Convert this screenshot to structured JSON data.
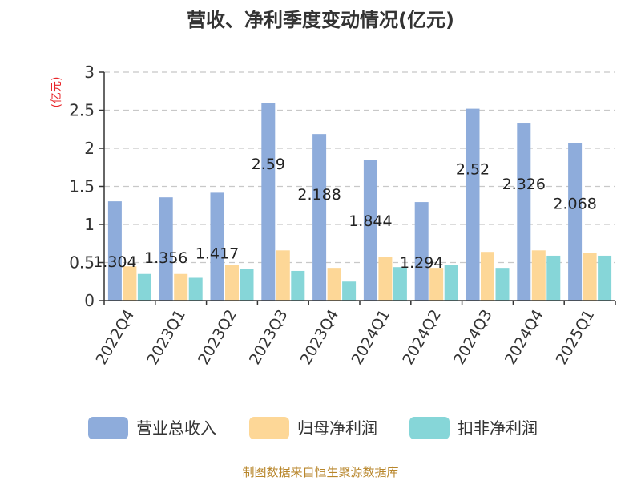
{
  "chart_data": {
    "type": "bar",
    "title": "营收、净利季度变动情况(亿元)",
    "ylabel": "(亿元)",
    "xlabel": "",
    "ylim": [
      0,
      3
    ],
    "yticks": [
      "0",
      "0.5",
      "1",
      "1.5",
      "2",
      "2.5",
      "3"
    ],
    "grid": true,
    "legend_position": "bottom",
    "categories": [
      "2022Q4",
      "2023Q1",
      "2023Q2",
      "2023Q3",
      "2023Q4",
      "2024Q1",
      "2024Q2",
      "2024Q3",
      "2024Q4",
      "2025Q1"
    ],
    "series": [
      {
        "name": "营业总收入",
        "color": "#8EACDB",
        "values": [
          1.304,
          1.356,
          1.417,
          2.59,
          2.188,
          1.844,
          1.294,
          2.52,
          2.326,
          2.068
        ],
        "labels": [
          "1.304",
          "1.356",
          "1.417",
          "2.59",
          "2.188",
          "1.844",
          "1.294",
          "2.52",
          "2.326",
          "2.068"
        ]
      },
      {
        "name": "归母净利润",
        "color": "#FDD797",
        "values": [
          0.45,
          0.35,
          0.47,
          0.66,
          0.43,
          0.57,
          0.43,
          0.64,
          0.66,
          0.63
        ]
      },
      {
        "name": "扣非净利润",
        "color": "#86D6D8",
        "values": [
          0.35,
          0.3,
          0.42,
          0.39,
          0.25,
          0.44,
          0.47,
          0.43,
          0.59,
          0.59
        ]
      }
    ],
    "source": "制图数据来自恒生聚源数据库"
  },
  "colors": {
    "ylabel": "#E8262A",
    "source": "#B8862B",
    "grid": "#C8C8C8",
    "axis": "#333333"
  }
}
